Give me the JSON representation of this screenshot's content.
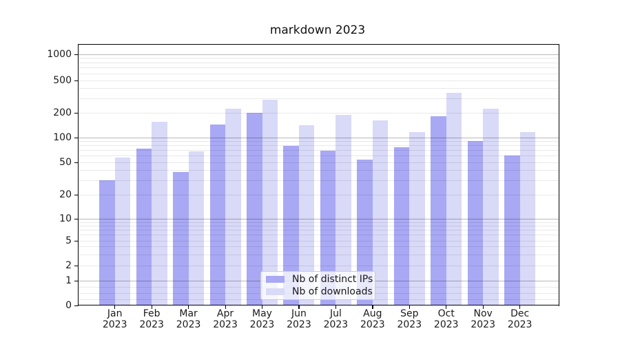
{
  "title": "markdown 2023",
  "chart_data": {
    "type": "bar",
    "title": "markdown 2023",
    "x": {
      "months": [
        "Jan",
        "Feb",
        "Mar",
        "Apr",
        "May",
        "Jun",
        "Jul",
        "Aug",
        "Sep",
        "Oct",
        "Nov",
        "Dec"
      ],
      "year": "2023"
    },
    "series": [
      {
        "name": "Nb of distinct IPs",
        "color": "#a8a8f4",
        "values": [
          30,
          74,
          38,
          145,
          199,
          80,
          70,
          54,
          76,
          182,
          90,
          61
        ]
      },
      {
        "name": "Nb of downloads",
        "color": "#d9d9f8",
        "values": [
          57,
          155,
          68,
          223,
          292,
          142,
          189,
          163,
          117,
          353,
          223,
          116
        ]
      }
    ],
    "yscale": "symlog",
    "ylim": [
      0,
      1320
    ],
    "y_ticks": [
      0,
      1,
      2,
      5,
      10,
      20,
      50,
      100,
      200,
      500,
      1000
    ],
    "y_tick_labels": [
      "0",
      "1",
      "2",
      "5",
      "10",
      "20",
      "50",
      "100",
      "200",
      "500",
      "1000"
    ],
    "grid": "both",
    "legend": {
      "position": "lower-center-inside",
      "entries": [
        "Nb of distinct IPs",
        "Nb of downloads"
      ]
    },
    "colors": {
      "grid_major": "rgba(0,0,0,0.28)",
      "grid_minor": "rgba(0,0,0,0.085)",
      "spine": "#000000",
      "text": "#1a1a1a"
    }
  }
}
